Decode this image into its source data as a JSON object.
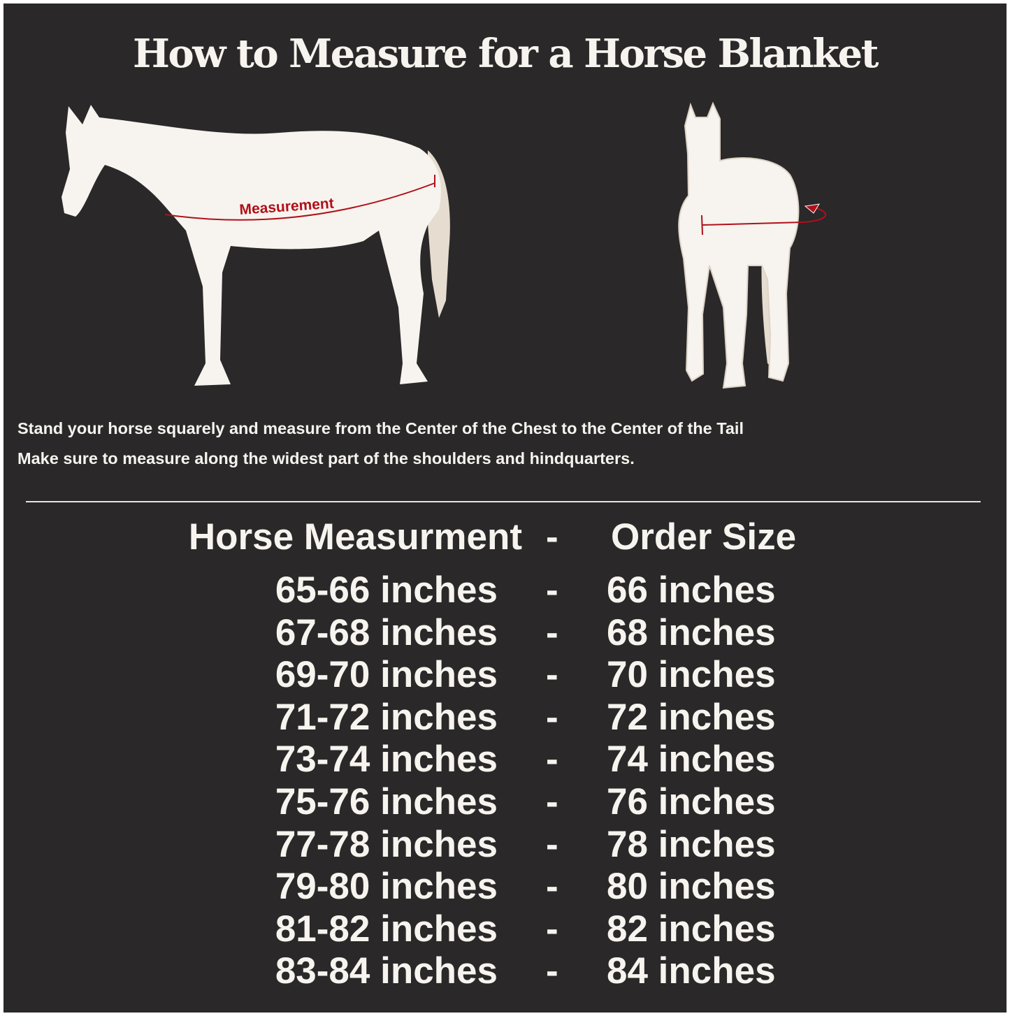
{
  "title": "How to Measure for a Horse Blanket",
  "diagram": {
    "side_label": "Measurement",
    "colors": {
      "background": "#2a2829",
      "horse": "#f7f3ee",
      "tail": "#e6dccf",
      "measure_line": "#b0101a"
    }
  },
  "instructions": [
    "Stand your horse squarely and measure from the Center of the Chest to the Center of the Tail",
    "Make sure to measure along the widest part of the shoulders and hindquarters."
  ],
  "table": {
    "header": {
      "left": "Horse Measurment",
      "sep": "-",
      "right": "Order Size"
    },
    "rows": [
      {
        "measurement": "65-66 inches",
        "sep": "-",
        "size": "66 inches"
      },
      {
        "measurement": "67-68 inches",
        "sep": "-",
        "size": "68 inches"
      },
      {
        "measurement": "69-70 inches",
        "sep": "-",
        "size": "70 inches"
      },
      {
        "measurement": "71-72 inches",
        "sep": "-",
        "size": "72 inches"
      },
      {
        "measurement": "73-74 inches",
        "sep": "-",
        "size": "74 inches"
      },
      {
        "measurement": "75-76 inches",
        "sep": "-",
        "size": "76 inches"
      },
      {
        "measurement": "77-78 inches",
        "sep": "-",
        "size": "78 inches"
      },
      {
        "measurement": "79-80 inches",
        "sep": "-",
        "size": "80 inches"
      },
      {
        "measurement": "81-82 inches",
        "sep": "-",
        "size": "82 inches"
      },
      {
        "measurement": "83-84 inches",
        "sep": "-",
        "size": "84 inches"
      }
    ]
  }
}
